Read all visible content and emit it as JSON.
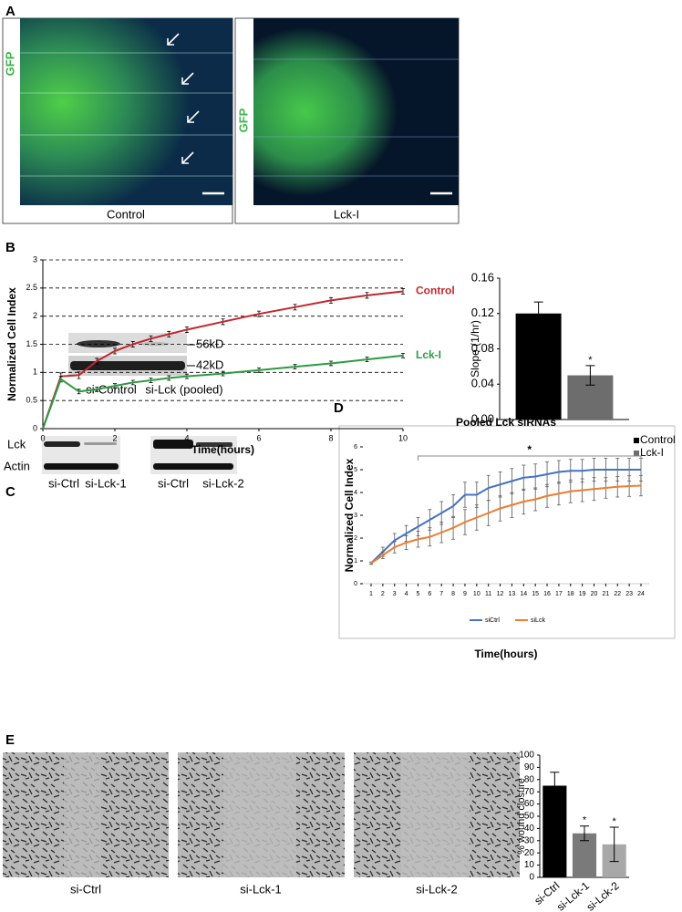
{
  "figure": {
    "panel_labels": [
      "A",
      "B",
      "C",
      "D",
      "E"
    ],
    "a": {
      "channel_label": "GFP",
      "captions": [
        "Control",
        "Lck-I"
      ]
    },
    "c": {
      "markers": [
        "56kD",
        "42kD"
      ],
      "pooled_lanes": [
        "si-Control",
        "si-Lck (pooled)"
      ],
      "row_labels": [
        "Lck",
        "Actin"
      ],
      "lanes_1": [
        "si-Ctrl",
        "si-Lck-1"
      ],
      "lanes_2": [
        "si-Ctrl",
        "si-Lck-2"
      ]
    },
    "e": {
      "captions": [
        "si-Ctrl",
        "si-Lck-1",
        "si-Lck-2"
      ]
    }
  },
  "chart_data": [
    {
      "type": "line",
      "xlabel": "Time(hours)",
      "ylabel": "Normalized Cell Index",
      "x": [
        0,
        0.5,
        1,
        1.5,
        2,
        2.5,
        3,
        3.5,
        4,
        5,
        6,
        7,
        8,
        9,
        10
      ],
      "series": [
        {
          "name": "Control",
          "color": "#c0272d",
          "values": [
            0,
            0.93,
            0.95,
            1.2,
            1.38,
            1.5,
            1.6,
            1.68,
            1.76,
            1.9,
            2.04,
            2.16,
            2.28,
            2.37,
            2.44
          ],
          "errors": [
            0,
            0.06,
            0.06,
            0.05,
            0.05,
            0.05,
            0.05,
            0.05,
            0.05,
            0.05,
            0.05,
            0.05,
            0.05,
            0.05,
            0.05
          ]
        },
        {
          "name": "Lck-I",
          "color": "#2e9a44",
          "values": [
            0,
            0.88,
            0.66,
            0.7,
            0.76,
            0.82,
            0.86,
            0.9,
            0.93,
            0.98,
            1.04,
            1.1,
            1.16,
            1.23,
            1.3
          ],
          "errors": [
            0,
            0.05,
            0.04,
            0.04,
            0.04,
            0.04,
            0.04,
            0.04,
            0.04,
            0.04,
            0.04,
            0.04,
            0.04,
            0.04,
            0.04
          ]
        }
      ],
      "xlim": [
        0,
        10
      ],
      "xticks": [
        0,
        2,
        4,
        6,
        8,
        10
      ],
      "ylim": [
        0,
        3
      ],
      "yticks": [
        0,
        0.5,
        1,
        1.5,
        2,
        2.5,
        3
      ],
      "grid": true,
      "legend": "right",
      "error_color": "#000000"
    },
    {
      "type": "bar",
      "ylabel": "Slope (1/hr)",
      "categories": [
        null
      ],
      "series": [
        {
          "name": "Control",
          "color": "#000000",
          "values": [
            0.12
          ],
          "errors": [
            0.013
          ],
          "annotations": [
            null
          ]
        },
        {
          "name": "Lck-I",
          "color": "#6d6d6d",
          "values": [
            0.05
          ],
          "errors": [
            0.011
          ],
          "annotations": [
            "*"
          ]
        }
      ],
      "ylim": [
        0,
        0.16
      ],
      "yticks": [
        {
          "value": 0,
          "label": "0.00"
        },
        0.04,
        0.08,
        0.12,
        0.16
      ],
      "grid": false,
      "legend": "lower right",
      "error_color": "#000000"
    },
    {
      "type": "line",
      "title": "Pooled Lck siRNAs",
      "xlabel": "Time(hours)",
      "ylabel": "Normalized Cell Index",
      "x": [
        1,
        2,
        3,
        4,
        5,
        6,
        7,
        8,
        9,
        10,
        11,
        12,
        13,
        14,
        15,
        16,
        17,
        18,
        19,
        20,
        21,
        22,
        23,
        24
      ],
      "series": [
        {
          "name": "siCtrl",
          "color": "#4472c4",
          "values": [
            0.9,
            1.4,
            1.9,
            2.2,
            2.5,
            2.8,
            3.1,
            3.4,
            3.9,
            3.9,
            4.2,
            4.35,
            4.5,
            4.65,
            4.7,
            4.8,
            4.9,
            4.95,
            4.95,
            5.0,
            5.0,
            5.0,
            5.0,
            5.0
          ],
          "errors": [
            0.05,
            0.2,
            0.3,
            0.35,
            0.4,
            0.45,
            0.5,
            0.5,
            0.55,
            0.55,
            0.55,
            0.55,
            0.55,
            0.55,
            0.55,
            0.55,
            0.5,
            0.5,
            0.5,
            0.5,
            0.5,
            0.5,
            0.5,
            0.5
          ]
        },
        {
          "name": "siLck",
          "color": "#ed7d31",
          "values": [
            0.9,
            1.25,
            1.6,
            1.8,
            1.95,
            2.05,
            2.25,
            2.45,
            2.7,
            2.9,
            3.1,
            3.3,
            3.45,
            3.6,
            3.7,
            3.85,
            3.95,
            4.05,
            4.1,
            4.15,
            4.2,
            4.25,
            4.28,
            4.3
          ],
          "errors": [
            0.05,
            0.15,
            0.25,
            0.3,
            0.35,
            0.4,
            0.45,
            0.5,
            0.55,
            0.55,
            0.55,
            0.55,
            0.55,
            0.55,
            0.5,
            0.5,
            0.5,
            0.5,
            0.5,
            0.5,
            0.45,
            0.45,
            0.45,
            0.45
          ]
        }
      ],
      "xlim": [
        0.3,
        24.7
      ],
      "xticks": [
        1,
        2,
        3,
        4,
        5,
        6,
        7,
        8,
        9,
        10,
        11,
        12,
        13,
        14,
        15,
        16,
        17,
        18,
        19,
        20,
        21,
        22,
        23,
        24
      ],
      "ylim": [
        0,
        6
      ],
      "yticks": [
        0,
        1,
        2,
        3,
        4,
        5,
        6
      ],
      "grid": false,
      "legend": "bottom",
      "error_color": "#555555",
      "annotation": {
        "text": "*",
        "x": [
          5,
          24
        ],
        "y": 5.6
      }
    },
    {
      "type": "bar",
      "ylabel": "% wound closure",
      "categories": [
        "si-Ctrl",
        "si-Lck-1",
        "si-Lck-2"
      ],
      "values": [
        75,
        36,
        27
      ],
      "errors": [
        11,
        6,
        14
      ],
      "colors": [
        "#000000",
        "#7a7a7a",
        "#a8a8a8"
      ],
      "annotations": [
        null,
        "*",
        "*"
      ],
      "ylim": [
        0,
        100
      ],
      "yticks": [
        0,
        10,
        20,
        30,
        40,
        50,
        60,
        70,
        80,
        90,
        100
      ],
      "grid": false,
      "error_color": "#000000"
    }
  ]
}
